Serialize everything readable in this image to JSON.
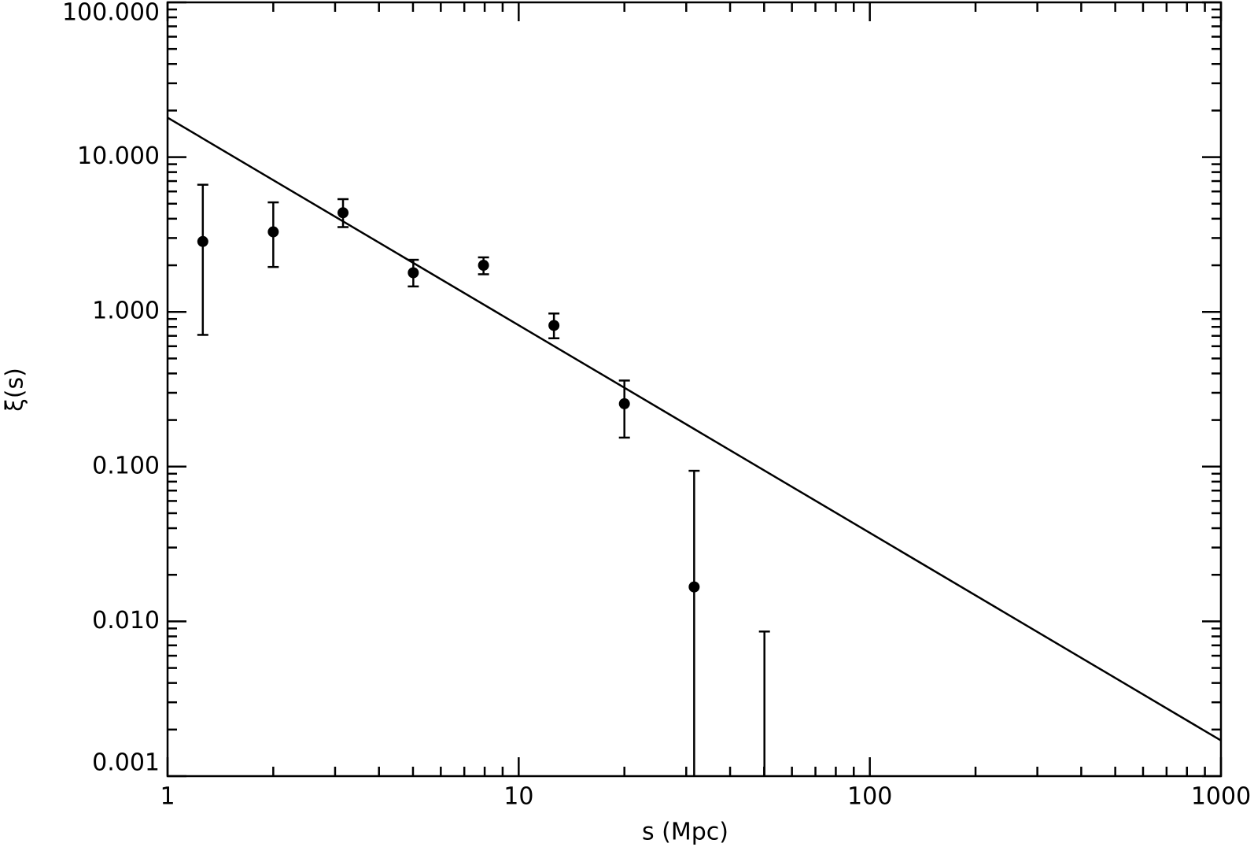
{
  "chart_data": {
    "type": "scatter",
    "xlabel": "s (Mpc)",
    "ylabel": "ξ(s)",
    "xscale": "log",
    "yscale": "log",
    "xlim": [
      1,
      1000
    ],
    "ylim": [
      0.001,
      100
    ],
    "xticks": [
      1,
      10,
      100,
      1000
    ],
    "yticks": [
      {
        "value": 0.001,
        "label": "0.001"
      },
      {
        "value": 0.01,
        "label": "0.010"
      },
      {
        "value": 0.1,
        "label": "0.100"
      },
      {
        "value": 1,
        "label": "1.000"
      },
      {
        "value": 10,
        "label": "10.000"
      },
      {
        "value": 100,
        "label": "100.000"
      }
    ],
    "color": "#000000",
    "x": [
      1.26,
      2.0,
      3.16,
      5.01,
      7.94,
      12.6,
      20.0,
      31.6,
      50.1
    ],
    "values": [
      2.85,
      3.29,
      4.37,
      1.79,
      2.0,
      0.817,
      0.255,
      0.0167,
      null
    ],
    "y_upper": [
      6.63,
      5.1,
      5.35,
      2.17,
      2.25,
      0.976,
      0.36,
      0.094,
      0.0086
    ],
    "y_lower": [
      0.71,
      1.95,
      3.53,
      1.46,
      1.75,
      0.675,
      0.154,
      null,
      null
    ],
    "fit": {
      "x": [
        1,
        1000
      ],
      "values": [
        18.0,
        0.0017
      ]
    }
  }
}
